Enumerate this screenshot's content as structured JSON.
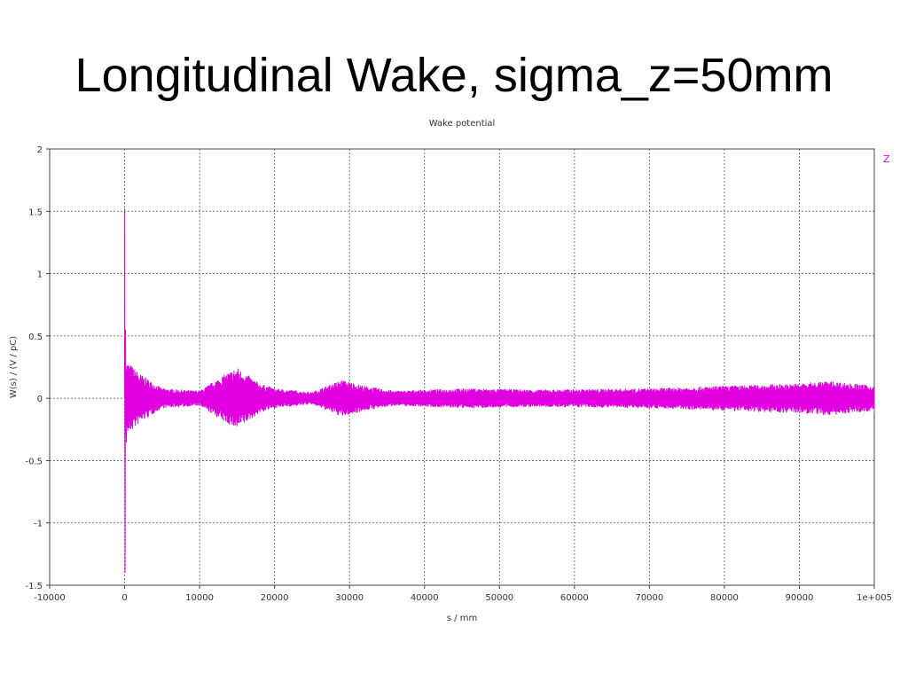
{
  "slide": {
    "title": "Longitudinal Wake, sigma_z=50mm"
  },
  "chart_data": {
    "type": "line",
    "title": "Wake potential",
    "xlabel": "s / mm",
    "ylabel": "W(s) / (V / pC)",
    "xlim": [
      -10000,
      100000
    ],
    "ylim": [
      -1.5,
      2
    ],
    "x_ticks": [
      -10000,
      0,
      10000,
      20000,
      30000,
      40000,
      50000,
      60000,
      70000,
      80000,
      90000,
      100000
    ],
    "x_tick_labels": [
      "-10000",
      "0",
      "10000",
      "20000",
      "30000",
      "40000",
      "50000",
      "60000",
      "70000",
      "80000",
      "90000",
      "1e+005"
    ],
    "y_ticks": [
      -1.5,
      -1,
      -0.5,
      0,
      0.5,
      1,
      1.5,
      2
    ],
    "y_tick_labels": [
      "-1.5",
      "-1",
      "-0.5",
      "0",
      "0.5",
      "1",
      "1.5",
      "2"
    ],
    "grid": true,
    "legend_position": "top-right",
    "series": [
      {
        "name": "Z",
        "color": "#e000e0",
        "spike": {
          "x": 0,
          "y_max": 1.52,
          "y_min": -1.4
        },
        "envelope": [
          {
            "x": 0,
            "amp": 0.6
          },
          {
            "x": 300,
            "amp": 0.3
          },
          {
            "x": 2000,
            "amp": 0.2
          },
          {
            "x": 5000,
            "amp": 0.08
          },
          {
            "x": 10000,
            "amp": 0.06
          },
          {
            "x": 13000,
            "amp": 0.18
          },
          {
            "x": 15000,
            "amp": 0.25
          },
          {
            "x": 18000,
            "amp": 0.12
          },
          {
            "x": 20000,
            "amp": 0.08
          },
          {
            "x": 25000,
            "amp": 0.05
          },
          {
            "x": 29000,
            "amp": 0.15
          },
          {
            "x": 32000,
            "amp": 0.1
          },
          {
            "x": 36000,
            "amp": 0.06
          },
          {
            "x": 45000,
            "amp": 0.08
          },
          {
            "x": 55000,
            "amp": 0.07
          },
          {
            "x": 70000,
            "amp": 0.08
          },
          {
            "x": 80000,
            "amp": 0.1
          },
          {
            "x": 90000,
            "amp": 0.12
          },
          {
            "x": 94000,
            "amp": 0.14
          },
          {
            "x": 100000,
            "amp": 0.1
          }
        ],
        "end_value": -0.12
      }
    ]
  }
}
